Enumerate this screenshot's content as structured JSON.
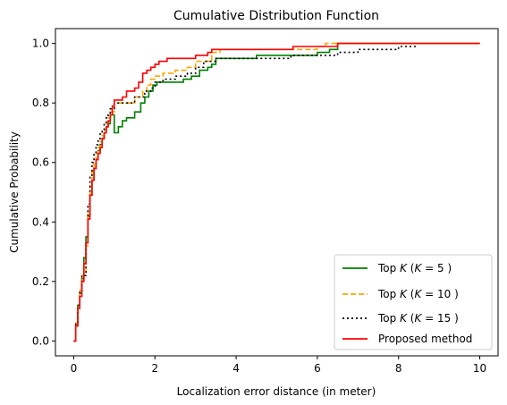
{
  "chart_data": {
    "type": "line",
    "title": "Cumulative Distribution Function",
    "xlabel": "Localization error distance (in meter)",
    "ylabel": "Cumulative Probability",
    "xlim": [
      -0.45,
      10.45
    ],
    "ylim": [
      -0.05,
      1.05
    ],
    "xticks": [
      0,
      2,
      4,
      6,
      8,
      10
    ],
    "xtick_labels": [
      "0",
      "2",
      "4",
      "6",
      "8",
      "10"
    ],
    "yticks": [
      0.0,
      0.2,
      0.4,
      0.6,
      0.8,
      1.0
    ],
    "ytick_labels": [
      "0.0",
      "0.2",
      "0.4",
      "0.6",
      "0.8",
      "1.0"
    ],
    "grid": false,
    "legend": {
      "placement": "lower-right",
      "entries": [
        {
          "prefix": "Top ",
          "italic_k": "K",
          "suffix": " (",
          "italic_k2": "K",
          "rest": " = 5 )"
        },
        {
          "prefix": "Top ",
          "italic_k": "K",
          "suffix": " (",
          "italic_k2": "K",
          "rest": " = 10 )"
        },
        {
          "prefix": "Top ",
          "italic_k": "K",
          "suffix": " (",
          "italic_k2": "K",
          "rest": " = 15 )"
        },
        {
          "prefix": "Proposed method",
          "italic_k": "",
          "suffix": "",
          "italic_k2": "",
          "rest": ""
        }
      ]
    },
    "series": [
      {
        "name": "Top K (K = 5 )",
        "color": "#008000",
        "style": "solid",
        "x": [
          0.0,
          0.05,
          0.1,
          0.15,
          0.2,
          0.25,
          0.3,
          0.35,
          0.4,
          0.45,
          0.5,
          0.55,
          0.6,
          0.65,
          0.7,
          0.75,
          0.8,
          0.85,
          0.9,
          1.0,
          1.1,
          1.2,
          1.3,
          1.5,
          1.65,
          1.75,
          1.85,
          1.95,
          2.05,
          2.5,
          2.7,
          2.9,
          3.1,
          3.3,
          3.4,
          3.5,
          3.9,
          4.5,
          5.0,
          5.7,
          6.0,
          6.1,
          6.3,
          6.5,
          7.0,
          10.0
        ],
        "y": [
          0.0,
          0.05,
          0.12,
          0.16,
          0.21,
          0.28,
          0.35,
          0.42,
          0.49,
          0.54,
          0.58,
          0.61,
          0.64,
          0.66,
          0.68,
          0.7,
          0.72,
          0.73,
          0.76,
          0.7,
          0.72,
          0.74,
          0.75,
          0.77,
          0.8,
          0.82,
          0.84,
          0.86,
          0.87,
          0.87,
          0.88,
          0.89,
          0.91,
          0.92,
          0.93,
          0.95,
          0.95,
          0.96,
          0.96,
          0.96,
          0.97,
          0.97,
          0.98,
          1.0,
          1.0,
          1.0
        ]
      },
      {
        "name": "Top K (K = 10 )",
        "color": "#ffa500",
        "style": "dashed",
        "x": [
          0.0,
          0.05,
          0.1,
          0.15,
          0.2,
          0.3,
          0.35,
          0.4,
          0.45,
          0.5,
          0.55,
          0.6,
          0.65,
          0.7,
          0.75,
          0.8,
          0.85,
          0.9,
          1.0,
          1.2,
          1.5,
          1.7,
          1.8,
          1.9,
          2.0,
          2.2,
          2.5,
          2.8,
          3.0,
          3.4,
          3.6,
          4.0,
          5.0,
          6.0,
          6.2,
          6.5,
          10.0
        ],
        "y": [
          0.0,
          0.06,
          0.12,
          0.17,
          0.22,
          0.32,
          0.43,
          0.52,
          0.57,
          0.6,
          0.63,
          0.65,
          0.67,
          0.69,
          0.71,
          0.73,
          0.75,
          0.77,
          0.8,
          0.8,
          0.82,
          0.84,
          0.86,
          0.88,
          0.89,
          0.9,
          0.91,
          0.92,
          0.94,
          0.97,
          0.98,
          0.98,
          0.98,
          0.99,
          1.0,
          1.0,
          1.0
        ]
      },
      {
        "name": "Top K (K = 15 )",
        "color": "#000000",
        "style": "dotted",
        "x": [
          0.0,
          0.05,
          0.1,
          0.15,
          0.2,
          0.3,
          0.35,
          0.4,
          0.45,
          0.5,
          0.55,
          0.6,
          0.65,
          0.7,
          0.75,
          0.8,
          0.85,
          0.9,
          1.0,
          1.2,
          1.5,
          1.75,
          1.9,
          2.0,
          2.2,
          2.5,
          2.8,
          3.0,
          3.2,
          3.5,
          4.0,
          5.0,
          5.35,
          6.0,
          6.5,
          7.0,
          8.0,
          8.45
        ],
        "y": [
          0.0,
          0.06,
          0.12,
          0.17,
          0.22,
          0.33,
          0.46,
          0.55,
          0.6,
          0.63,
          0.66,
          0.68,
          0.7,
          0.71,
          0.73,
          0.75,
          0.76,
          0.78,
          0.8,
          0.8,
          0.82,
          0.84,
          0.85,
          0.87,
          0.88,
          0.89,
          0.9,
          0.92,
          0.94,
          0.95,
          0.95,
          0.95,
          0.96,
          0.96,
          0.97,
          0.98,
          0.99,
          0.99
        ]
      },
      {
        "name": "Proposed method",
        "color": "#ff0000",
        "style": "solid",
        "x": [
          0.0,
          0.05,
          0.1,
          0.15,
          0.2,
          0.25,
          0.3,
          0.35,
          0.4,
          0.45,
          0.5,
          0.55,
          0.6,
          0.65,
          0.7,
          0.75,
          0.8,
          0.85,
          0.9,
          0.95,
          1.0,
          1.2,
          1.3,
          1.5,
          1.6,
          1.7,
          1.8,
          1.9,
          2.0,
          2.1,
          2.3,
          2.6,
          3.0,
          3.3,
          3.4,
          3.5,
          4.0,
          5.0,
          5.4,
          6.0,
          6.5,
          10.0
        ],
        "y": [
          0.0,
          0.05,
          0.11,
          0.15,
          0.2,
          0.26,
          0.33,
          0.41,
          0.49,
          0.54,
          0.58,
          0.61,
          0.63,
          0.65,
          0.68,
          0.7,
          0.72,
          0.74,
          0.76,
          0.79,
          0.81,
          0.82,
          0.84,
          0.85,
          0.87,
          0.9,
          0.91,
          0.92,
          0.93,
          0.94,
          0.95,
          0.95,
          0.96,
          0.97,
          0.98,
          0.98,
          0.98,
          0.98,
          0.99,
          0.99,
          1.0,
          1.0
        ]
      }
    ]
  }
}
